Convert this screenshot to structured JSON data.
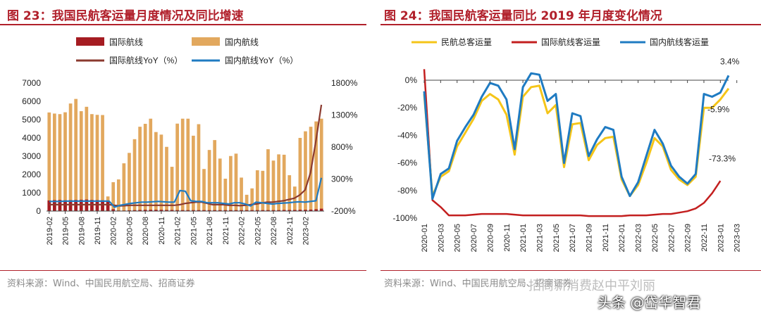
{
  "left": {
    "title": "图 23：我国民航客运量月度情况及同比增速",
    "source": "资料来源：Wind、中国民用航空局、招商证券"
  },
  "right": {
    "title": "图 24：我国民航客运量同比 2019 年月度变化情况",
    "source": "资料来源：Wind、中国民用航空局、招商证券"
  },
  "watermark": {
    "text1": "招商新消费赵中平刘丽",
    "text2": "头条 @岱华智君"
  },
  "colors": {
    "title_red": "#b1202b",
    "intl_bar": "#a51c22",
    "dom_bar": "#e2a85e",
    "intl_yoy": "#8b3a2f",
    "dom_yoy": "#1f7bc2",
    "total_line": "#f5c518",
    "intl_line": "#c31f1f",
    "dom_line": "#1f7bc2"
  },
  "chart_data": [
    {
      "type": "bar",
      "legend": [
        "国际航线",
        "国内航线",
        "国际航线YoY（%）",
        "国内航线YoY（%）"
      ],
      "x_tick_labels": [
        "2019-02",
        "2019-05",
        "2019-08",
        "2019-11",
        "2020-02",
        "2020-05",
        "2020-08",
        "2020-11",
        "2021-02",
        "2021-05",
        "2021-08",
        "2021-11",
        "2022-02",
        "2022-05",
        "2022-08",
        "2022-11",
        "2023-02"
      ],
      "ylim": [
        0,
        7000
      ],
      "y_ticks": [
        0,
        1000,
        2000,
        3000,
        4000,
        5000,
        6000,
        7000
      ],
      "y2lim": [
        -200,
        1800
      ],
      "y2_ticks": [
        "-200%",
        "300%",
        "800%",
        "1300%",
        "1800%"
      ],
      "y2_tick_values": [
        -200,
        300,
        800,
        1300,
        1800
      ],
      "series": [
        {
          "name": "国际航线",
          "kind": "bar",
          "axis": "left",
          "values": [
            580,
            600,
            610,
            590,
            600,
            610,
            620,
            630,
            610,
            600,
            590,
            560,
            100,
            30,
            30,
            40,
            50,
            60,
            70,
            70,
            70,
            70,
            60,
            60,
            50,
            50,
            50,
            50,
            50,
            50,
            50,
            50,
            50,
            50,
            50,
            50,
            50,
            50,
            50,
            50,
            50,
            50,
            50,
            50,
            60,
            60,
            60,
            70,
            70,
            80,
            100,
            130,
            200,
            260,
            300,
            340
          ]
        },
        {
          "name": "国内航线",
          "kind": "bar",
          "axis": "left",
          "values": [
            5390,
            5330,
            5300,
            5400,
            5880,
            6130,
            5460,
            5700,
            5300,
            5260,
            5250,
            800,
            1580,
            1730,
            2610,
            3180,
            3930,
            4610,
            4770,
            5050,
            4320,
            4180,
            3510,
            2420,
            4780,
            5050,
            5050,
            4120,
            4750,
            2300,
            3340,
            3880,
            2870,
            1770,
            3010,
            3140,
            1830,
            890,
            1240,
            2230,
            2200,
            3380,
            2760,
            3100,
            3080,
            1960,
            1340,
            4000,
            4360,
            4610,
            4900,
            5050
          ]
        },
        {
          "name": "国际航线YoY（%）",
          "kind": "line",
          "axis": "right",
          "values": [
            -100,
            -100,
            -100,
            -100,
            -100,
            -100,
            -100,
            -100,
            -100,
            -100,
            -100,
            -100,
            -110,
            -120,
            -115,
            -110,
            -110,
            -110,
            -110,
            -110,
            -110,
            -110,
            -110,
            -110,
            -100,
            -80,
            -70,
            -60,
            -60,
            -80,
            -100,
            -100,
            -100,
            -110,
            -110,
            -115,
            -110,
            -100,
            -90,
            -75,
            -60,
            -60,
            -50,
            -40,
            -20,
            0,
            50,
            130,
            400,
            900,
            1460
          ]
        },
        {
          "name": "国内航线YoY（%）",
          "kind": "line",
          "axis": "right",
          "values": [
            -50,
            -50,
            -50,
            -45,
            -45,
            -45,
            -45,
            -45,
            -45,
            -45,
            -45,
            -45,
            -140,
            -110,
            -95,
            -80,
            -70,
            -60,
            -60,
            -55,
            -50,
            -55,
            -60,
            -60,
            120,
            110,
            -40,
            -50,
            -50,
            -70,
            -70,
            -70,
            -80,
            -90,
            -70,
            -70,
            -90,
            -120,
            -60,
            -70,
            -80,
            -90,
            -80,
            -75,
            -70,
            -60,
            -55,
            -60,
            -50,
            -40,
            320
          ]
        }
      ]
    },
    {
      "type": "line",
      "legend": [
        "民航总客运量",
        "国际航线客运量",
        "国内航线客运量"
      ],
      "x_tick_labels": [
        "2020-01",
        "2020-03",
        "2020-05",
        "2020-07",
        "2020-09",
        "2020-11",
        "2021-01",
        "2021-03",
        "2021-05",
        "2021-07",
        "2021-09",
        "2021-11",
        "2022-01",
        "2022-03",
        "2022-05",
        "2022-07",
        "2022-09",
        "2022-11",
        "2023-01",
        "2023-03"
      ],
      "ylim": [
        -100,
        0
      ],
      "y_ticks": [
        "0%",
        "-20%",
        "-40%",
        "-60%",
        "-80%",
        "-100%"
      ],
      "y_tick_values": [
        0,
        -20,
        -40,
        -60,
        -80,
        -100
      ],
      "annotations": [
        "3.4%",
        "-5.9%",
        "-73.3%"
      ],
      "series": [
        {
          "name": "民航总客运量",
          "values": [
            -10,
            -84,
            -70,
            -66,
            -48,
            -38,
            -28,
            -15,
            -10,
            -14,
            -25,
            -54,
            -12,
            -5,
            -4,
            -24,
            -18,
            -63,
            -32,
            -31,
            -58,
            -47,
            -42,
            -41,
            -72,
            -84,
            -76,
            -60,
            -42,
            -48,
            -65,
            -72,
            -76,
            -70,
            -20,
            -20,
            -14,
            -6
          ]
        },
        {
          "name": "国际航线客运量",
          "values": [
            8,
            -87,
            -92,
            -98,
            -98,
            -98,
            -97.5,
            -97,
            -97,
            -97,
            -97,
            -97.5,
            -98,
            -98,
            -98,
            -98,
            -98,
            -98,
            -98,
            -98,
            -98.5,
            -98.5,
            -98.5,
            -98.5,
            -98.5,
            -98,
            -98,
            -98,
            -97.5,
            -97,
            -97,
            -96,
            -95,
            -93,
            -89,
            -82,
            -73
          ]
        },
        {
          "name": "国内航线客运量",
          "values": [
            -8,
            -86,
            -68,
            -64,
            -44,
            -34,
            -25,
            -12,
            -2,
            -4,
            -14,
            -50,
            -5,
            5,
            4,
            -15,
            -10,
            -60,
            -24,
            -26,
            -55,
            -43,
            -34,
            -36,
            -70,
            -84,
            -74,
            -55,
            -36,
            -46,
            -62,
            -70,
            -75,
            -68,
            -10,
            -12,
            -9,
            3.4
          ]
        }
      ]
    }
  ]
}
